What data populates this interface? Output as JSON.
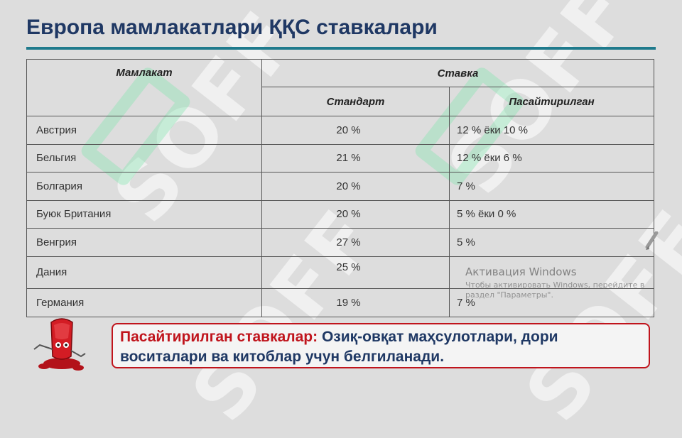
{
  "title": "Европа мамлакатлари ҚҚС ставкалари",
  "table": {
    "headers": {
      "country": "Мамлакат",
      "rate": "Ставка",
      "standard": "Стандарт",
      "reduced": "Пасайтирилган"
    },
    "rows": [
      {
        "country": "Австрия",
        "standard": "20 %",
        "reduced": "12 % ёки 10 %"
      },
      {
        "country": "Бельгия",
        "standard": "21 %",
        "reduced": "12 % ёки 6 %"
      },
      {
        "country": "Болгария",
        "standard": "20 %",
        "reduced": "7 %"
      },
      {
        "country": "Буюк Британия",
        "standard": "20 %",
        "reduced": "5 % ёки 0 %"
      },
      {
        "country": "Венгрия",
        "standard": "27 %",
        "reduced": "5 %"
      },
      {
        "country": "Дания",
        "standard": "25 %",
        "reduced": ""
      },
      {
        "country": "Германия",
        "standard": "19 %",
        "reduced": "7 %"
      }
    ]
  },
  "activation": {
    "title": "Активация Windows",
    "line1": "Чтобы активировать Windows, перейдите в",
    "line2": "раздел \"Параметры\"."
  },
  "note": {
    "keyword": "Пасайтирилган ставкалар:",
    "text": "Озиқ-овқат маҳсулотлари, дори воситалари ва китоблар учун белгиланади."
  },
  "watermark": "SOFF",
  "colors": {
    "title": "#1f3864",
    "accent_rule": "#1f7a8c",
    "note_border": "#c0141c",
    "note_keyword": "#c0141c"
  }
}
